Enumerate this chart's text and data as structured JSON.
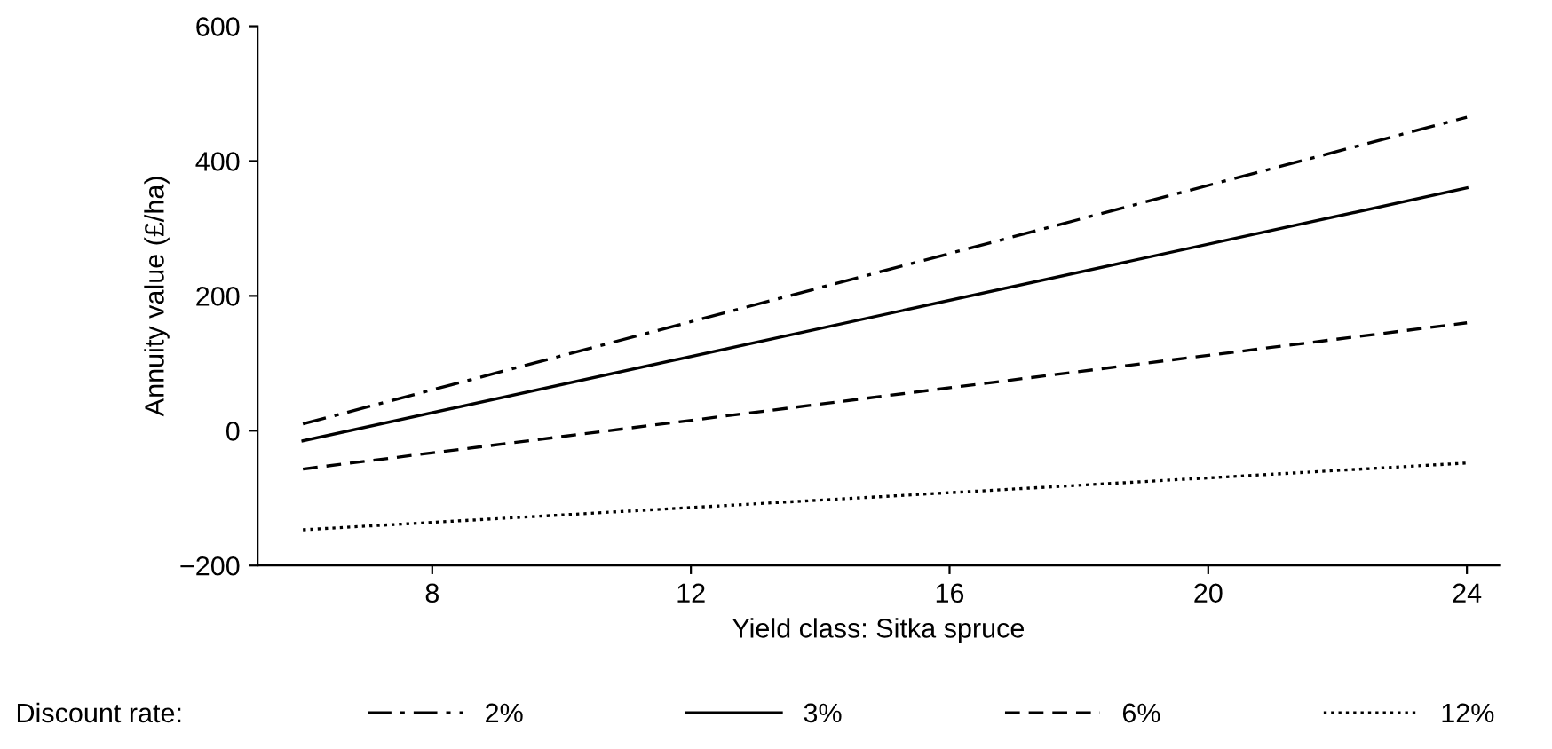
{
  "chart_data": {
    "type": "line",
    "xlabel": "Yield class: Sitka spruce",
    "ylabel": "Annuity value (£/ha)",
    "legend_title": "Discount rate:",
    "legend": "bottom",
    "grid": false,
    "marker": "none",
    "xlim": [
      5.3,
      24.5
    ],
    "xticks": [
      8,
      12,
      16,
      20,
      24
    ],
    "ylim": [
      -200,
      600
    ],
    "yticks": [
      {
        "value": -200,
        "label": "−200"
      },
      0,
      200,
      400,
      600
    ],
    "x": [
      6,
      24
    ],
    "series": [
      {
        "name": "2%",
        "color": "#000000",
        "line_style": "dashdot",
        "values": [
          10,
          465
        ]
      },
      {
        "name": "3%",
        "color": "#000000",
        "line_style": "solid",
        "values": [
          -15,
          360
        ]
      },
      {
        "name": "6%",
        "color": "#000000",
        "line_style": "dashed",
        "values": [
          -57,
          160
        ]
      },
      {
        "name": "12%",
        "color": "#000000",
        "line_style": "dotted",
        "values": [
          -147,
          -48
        ]
      }
    ]
  }
}
